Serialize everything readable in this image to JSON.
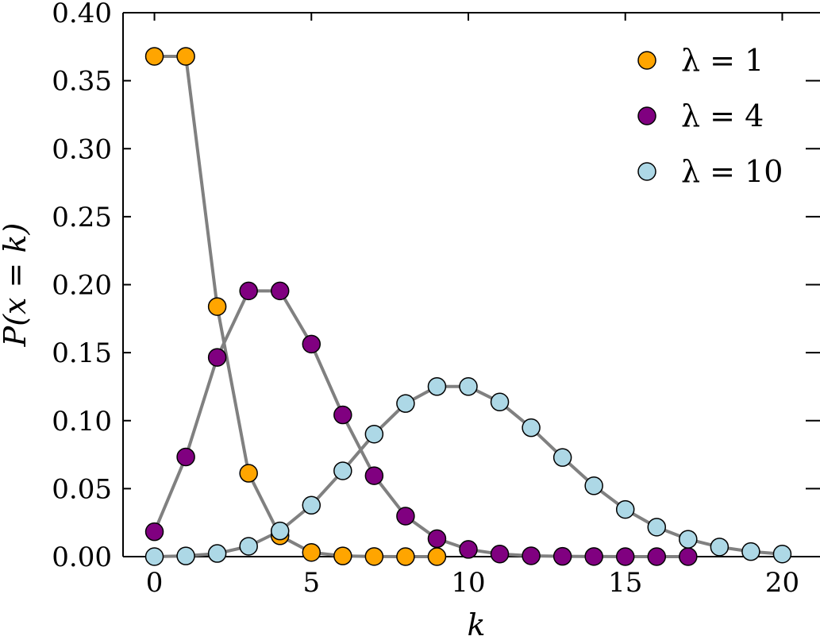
{
  "chart_data": {
    "type": "line",
    "title": "",
    "xlabel": "k",
    "ylabel": "P(x = k)",
    "xlim": [
      -1,
      21
    ],
    "ylim": [
      0,
      0.4
    ],
    "xticks": [
      0,
      5,
      10,
      15,
      20
    ],
    "xtick_labels": [
      "0",
      "5",
      "10",
      "15",
      "20"
    ],
    "yticks": [
      0.0,
      0.05,
      0.1,
      0.15,
      0.2,
      0.25,
      0.3,
      0.35,
      0.4
    ],
    "ytick_labels": [
      "0.00",
      "0.05",
      "0.10",
      "0.15",
      "0.20",
      "0.25",
      "0.30",
      "0.35",
      "0.40"
    ],
    "grid": false,
    "legend_position": "top-right",
    "line_color": "#808080",
    "marker_edge_color": "#000000",
    "series": [
      {
        "name": "λ = 1",
        "color": "#ffa500",
        "x": [
          0,
          1,
          2,
          3,
          4,
          5,
          6,
          7,
          8,
          9
        ],
        "values": [
          0.3679,
          0.3679,
          0.1839,
          0.0613,
          0.0153,
          0.0031,
          0.0005,
          0.0001,
          0.0,
          0.0
        ]
      },
      {
        "name": "λ = 4",
        "color": "#800080",
        "x": [
          0,
          1,
          2,
          3,
          4,
          5,
          6,
          7,
          8,
          9,
          10,
          11,
          12,
          13,
          14,
          15,
          16,
          17
        ],
        "values": [
          0.0183,
          0.0733,
          0.1465,
          0.1954,
          0.1954,
          0.1563,
          0.1042,
          0.0595,
          0.0298,
          0.0132,
          0.0053,
          0.0019,
          0.0006,
          0.0002,
          0.0001,
          0.0,
          0.0,
          0.0
        ]
      },
      {
        "name": "λ = 10",
        "color": "#add8e6",
        "x": [
          0,
          1,
          2,
          3,
          4,
          5,
          6,
          7,
          8,
          9,
          10,
          11,
          12,
          13,
          14,
          15,
          16,
          17,
          18,
          19,
          20
        ],
        "values": [
          0.0,
          0.0005,
          0.0023,
          0.0076,
          0.0189,
          0.0378,
          0.0631,
          0.0901,
          0.1126,
          0.1251,
          0.1251,
          0.1137,
          0.0948,
          0.0729,
          0.0521,
          0.0347,
          0.0217,
          0.0128,
          0.0071,
          0.0037,
          0.0019
        ]
      }
    ]
  }
}
